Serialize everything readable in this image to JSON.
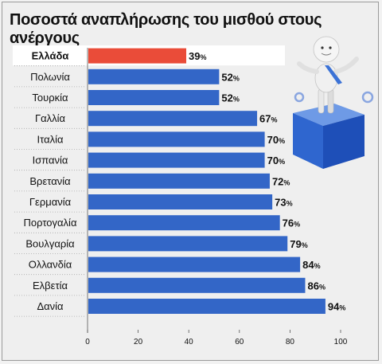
{
  "colors": {
    "bar": "#3366c7",
    "highlight_bar": "#ea4c39",
    "highlight_row_bg": "#ffffff",
    "frame": "#9a9a9a"
  },
  "chart_data": {
    "type": "bar",
    "orientation": "horizontal",
    "title": "Ποσοστά αναπλήρωσης του μισθού στους ανέργους",
    "categories": [
      "Ελλάδα",
      "Πολωνία",
      "Τουρκία",
      "Γαλλία",
      "Ιταλία",
      "Ισπανία",
      "Βρετανία",
      "Γερμανία",
      "Πορτογαλία",
      "Βουλγαρία",
      "Ολλανδία",
      "Ελβετία",
      "Δανία"
    ],
    "values": [
      39,
      52,
      52,
      67,
      70,
      70,
      72,
      73,
      76,
      79,
      84,
      86,
      94
    ],
    "value_suffix": "%",
    "highlight_category": "Ελλάδα",
    "xlim": [
      0,
      100
    ],
    "xticks": [
      "0",
      "20",
      "40",
      "60",
      "80",
      "100"
    ],
    "xlabel": "",
    "ylabel": "",
    "grid": false,
    "legend": "none"
  },
  "illustration": {
    "icon": "figure-on-blue-cube-icon"
  }
}
